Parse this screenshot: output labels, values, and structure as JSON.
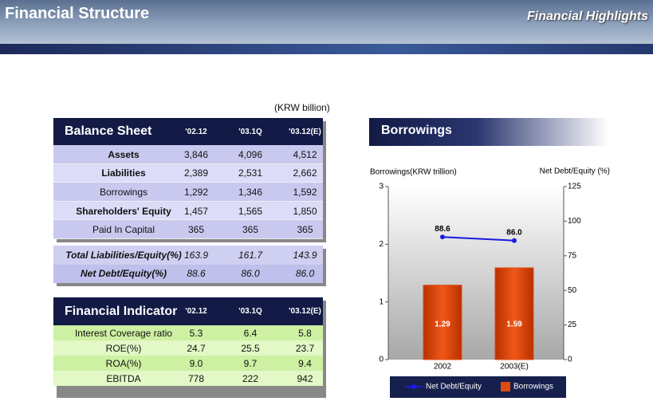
{
  "header": {
    "title": "Financial Structure",
    "subtitle": "Financial Highlights"
  },
  "unit_note": "(KRW billion)",
  "balance_sheet": {
    "header": [
      "Balance Sheet",
      "'02.12",
      "'03.1Q",
      "'03.12(E)"
    ],
    "rows": [
      [
        "Assets",
        "3,846",
        "4,096",
        "4,512"
      ],
      [
        "Liabilities",
        "2,389",
        "2,531",
        "2,662"
      ],
      [
        "Borrowings",
        "1,292",
        "1,346",
        "1,592"
      ],
      [
        "Shareholders' Equity",
        "1,457",
        "1,565",
        "1,850"
      ],
      [
        "Paid In Capital",
        "365",
        "365",
        "365"
      ]
    ],
    "ratio_rows": [
      [
        "Total Liabilities/Equity(%)",
        "163.9",
        "161.7",
        "143.9"
      ],
      [
        "Net Debt/Equity(%)",
        "88.6",
        "86.0",
        "86.0"
      ]
    ]
  },
  "financial_indicator": {
    "header": [
      "Financial Indicator",
      "'02.12",
      "'03.1Q",
      "'03.12(E)"
    ],
    "rows": [
      [
        "Interest Coverage ratio",
        "5.3",
        "6.4",
        "5.8"
      ],
      [
        "ROE(%)",
        "24.7",
        "25.5",
        "23.7"
      ],
      [
        "ROA(%)",
        "9.0",
        "9.7",
        "9.4"
      ],
      [
        "EBITDA",
        "778",
        "222",
        "942"
      ]
    ]
  },
  "chart_data": {
    "type": "combo",
    "title": "Borrowings",
    "y_label": "Borrowings(KRW trillion)",
    "y2_label": "Net Debt/Equity (%)",
    "categories": [
      "2002",
      "2003(E)"
    ],
    "series": [
      {
        "name": "Net Debt/Equity",
        "kind": "line",
        "axis": "y2",
        "color": "#1a1ae0",
        "values": [
          88.6,
          86.0
        ],
        "value_labels": [
          "88.6",
          "86.0"
        ]
      },
      {
        "name": "Borrowings",
        "kind": "bar",
        "color": "#e04a10",
        "values": [
          1.29,
          1.59
        ]
      }
    ],
    "ylim": [
      0,
      3
    ],
    "yticks": [
      0,
      1,
      2,
      3
    ],
    "y2lim": [
      0,
      125
    ],
    "y2ticks": [
      0,
      25,
      50,
      75,
      100,
      125
    ]
  }
}
